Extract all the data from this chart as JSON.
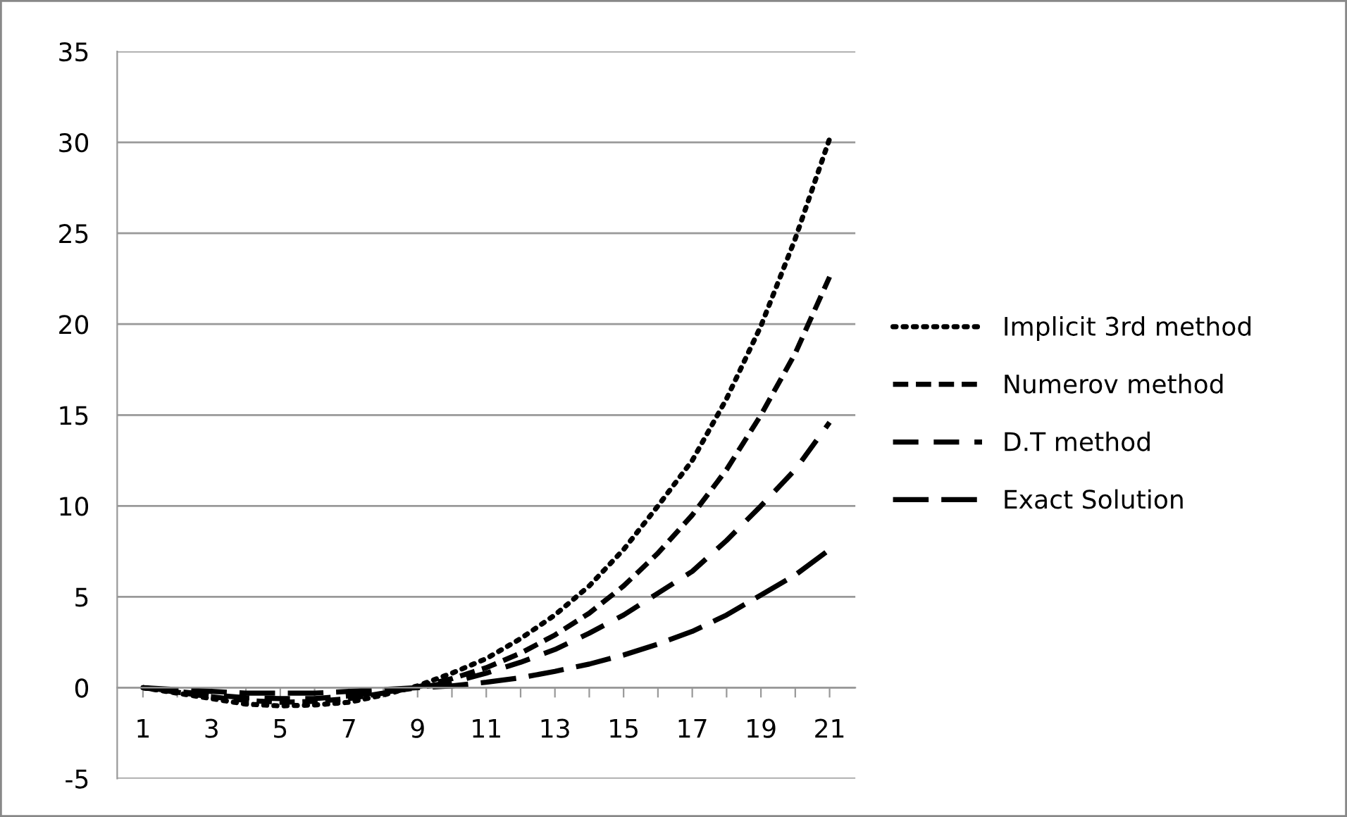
{
  "chart_data": {
    "type": "line",
    "categories": [
      "1",
      null,
      "3",
      null,
      "5",
      null,
      "7",
      null,
      "9",
      null,
      "11",
      null,
      "13",
      null,
      "15",
      null,
      "17",
      null,
      "19",
      null,
      "21"
    ],
    "series": [
      {
        "name": "Implicit 3rd method",
        "color": "#000000",
        "line_style": "dotted",
        "values": [
          0,
          -0.3,
          -0.6,
          -0.9,
          -1.0,
          -0.95,
          -0.8,
          -0.4,
          0.1,
          0.8,
          1.6,
          2.7,
          4.0,
          5.6,
          7.6,
          10,
          12.5,
          15.9,
          19.9,
          24.7,
          30.2
        ]
      },
      {
        "name": "Numerov method",
        "color": "#000000",
        "line_style": "dashed",
        "values": [
          0,
          -0.25,
          -0.5,
          -0.7,
          -0.8,
          -0.75,
          -0.6,
          -0.3,
          0.05,
          0.5,
          1.1,
          1.9,
          2.9,
          4.1,
          5.6,
          7.4,
          9.5,
          12,
          15,
          18.4,
          22.6
        ]
      },
      {
        "name": "D.T method",
        "color": "#000000",
        "line_style": "dashed",
        "values": [
          0,
          -0.2,
          -0.4,
          -0.55,
          -0.6,
          -0.6,
          -0.45,
          -0.25,
          0,
          0.3,
          0.8,
          1.4,
          2.1,
          3,
          4,
          5.2,
          6.4,
          8.1,
          10,
          12,
          14.6
        ]
      },
      {
        "name": "Exact Solution",
        "color": "#000000",
        "line_style": "dashed",
        "values": [
          0,
          -0.1,
          -0.2,
          -0.3,
          -0.3,
          -0.3,
          -0.2,
          -0.1,
          0,
          0.1,
          0.3,
          0.55,
          0.9,
          1.3,
          1.8,
          2.4,
          3.1,
          4.0,
          5.1,
          6.2,
          7.6
        ]
      }
    ],
    "ylim": [
      -5,
      35
    ],
    "yticks": [
      -5,
      0,
      5,
      10,
      15,
      20,
      25,
      30,
      35
    ],
    "grid": "y",
    "legend": "right",
    "marker": "none"
  }
}
